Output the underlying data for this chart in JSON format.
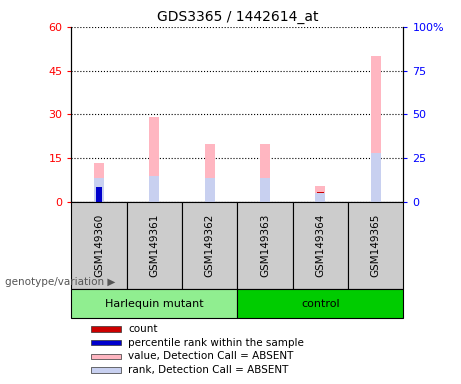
{
  "title": "GDS3365 / 1442614_at",
  "samples": [
    "GSM149360",
    "GSM149361",
    "GSM149362",
    "GSM149363",
    "GSM149364",
    "GSM149365"
  ],
  "groups": [
    "Harlequin mutant",
    "Harlequin mutant",
    "Harlequin mutant",
    "control",
    "control",
    "control"
  ],
  "group_colors": {
    "Harlequin mutant": "#90EE90",
    "control": "#00CC00"
  },
  "pink_bar_heights": [
    13.5,
    29.0,
    20.0,
    20.0,
    5.5,
    50.0
  ],
  "blue_bar_heights": [
    13.5,
    15.0,
    13.5,
    13.5,
    5.0,
    28.0
  ],
  "red_bar_heights": [
    5.0,
    0,
    0,
    0,
    3.5,
    0
  ],
  "dark_blue_bar_heights": [
    8.5,
    0,
    0,
    0,
    0,
    0
  ],
  "ylim_left": [
    0,
    60
  ],
  "ylim_right": [
    0,
    100
  ],
  "yticks_left": [
    0,
    15,
    30,
    45,
    60
  ],
  "ytick_labels_left": [
    "0",
    "15",
    "30",
    "45",
    "60"
  ],
  "yticks_right": [
    0,
    25,
    50,
    75,
    100
  ],
  "ytick_labels_right": [
    "0",
    "25",
    "50",
    "75",
    "100%"
  ],
  "legend_items": [
    {
      "label": "count",
      "color": "#cc0000"
    },
    {
      "label": "percentile rank within the sample",
      "color": "#0000cc"
    },
    {
      "label": "value, Detection Call = ABSENT",
      "color": "#ffb6c1"
    },
    {
      "label": "rank, Detection Call = ABSENT",
      "color": "#c8d0f0"
    }
  ],
  "bar_width": 0.12,
  "pink_bar_width": 0.18,
  "ax_bg": "#ffffff",
  "sample_box_color": "#cccccc",
  "genotype_label": "genotype/variation"
}
